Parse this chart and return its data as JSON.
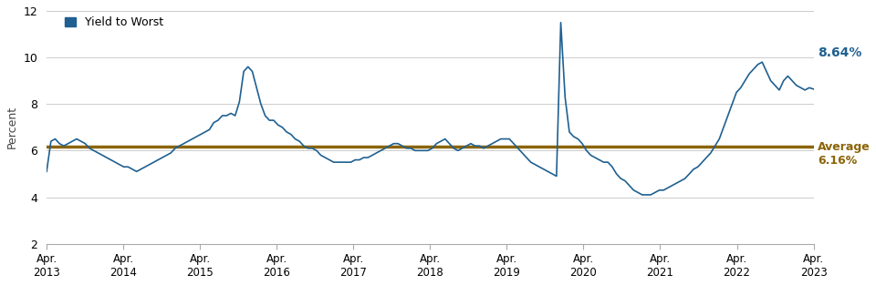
{
  "title": "",
  "ylabel": "Percent",
  "average_value": 6.16,
  "last_value": 8.64,
  "line_color": "#1f6091",
  "average_color": "#8B6508",
  "ylim": [
    2,
    12
  ],
  "yticks": [
    2,
    4,
    6,
    8,
    10,
    12
  ],
  "legend_label": "Yield to Worst",
  "x_tick_labels": [
    "Apr.\n2013",
    "Apr.\n2014",
    "Apr.\n2015",
    "Apr.\n2016",
    "Apr.\n2017",
    "Apr.\n2018",
    "Apr.\n2019",
    "Apr.\n2020",
    "Apr.\n2021",
    "Apr.\n2022",
    "Apr.\n2023"
  ],
  "background_color": "#ffffff",
  "data": [
    5.1,
    6.4,
    6.5,
    6.3,
    6.2,
    6.3,
    6.4,
    6.5,
    6.4,
    6.3,
    6.1,
    6.0,
    5.9,
    5.8,
    5.7,
    5.6,
    5.5,
    5.4,
    5.3,
    5.3,
    5.2,
    5.1,
    5.2,
    5.3,
    5.4,
    5.5,
    5.6,
    5.7,
    5.8,
    5.9,
    6.1,
    6.2,
    6.3,
    6.4,
    6.5,
    6.6,
    6.7,
    6.8,
    6.9,
    7.2,
    7.3,
    7.5,
    7.5,
    7.6,
    7.5,
    8.1,
    9.4,
    9.6,
    9.4,
    8.7,
    8.0,
    7.5,
    7.3,
    7.3,
    7.1,
    7.0,
    6.8,
    6.7,
    6.5,
    6.4,
    6.2,
    6.1,
    6.1,
    6.0,
    5.8,
    5.7,
    5.6,
    5.5,
    5.5,
    5.5,
    5.5,
    5.5,
    5.6,
    5.6,
    5.7,
    5.7,
    5.8,
    5.9,
    6.0,
    6.1,
    6.2,
    6.3,
    6.3,
    6.2,
    6.1,
    6.1,
    6.0,
    6.0,
    6.0,
    6.0,
    6.1,
    6.3,
    6.4,
    6.5,
    6.3,
    6.1,
    6.0,
    6.1,
    6.2,
    6.3,
    6.2,
    6.2,
    6.1,
    6.2,
    6.3,
    6.4,
    6.5,
    6.5,
    6.5,
    6.3,
    6.1,
    5.9,
    5.7,
    5.5,
    5.4,
    5.3,
    5.2,
    5.1,
    5.0,
    4.9,
    11.5,
    8.3,
    6.8,
    6.6,
    6.5,
    6.3,
    6.0,
    5.8,
    5.7,
    5.6,
    5.5,
    5.5,
    5.3,
    5.0,
    4.8,
    4.7,
    4.5,
    4.3,
    4.2,
    4.1,
    4.1,
    4.1,
    4.2,
    4.3,
    4.3,
    4.4,
    4.5,
    4.6,
    4.7,
    4.8,
    5.0,
    5.2,
    5.3,
    5.5,
    5.7,
    5.9,
    6.2,
    6.5,
    7.0,
    7.5,
    8.0,
    8.5,
    8.7,
    9.0,
    9.3,
    9.5,
    9.7,
    9.8,
    9.4,
    9.0,
    8.8,
    8.6,
    9.0,
    9.2,
    9.0,
    8.8,
    8.7,
    8.6,
    8.7,
    8.64
  ]
}
